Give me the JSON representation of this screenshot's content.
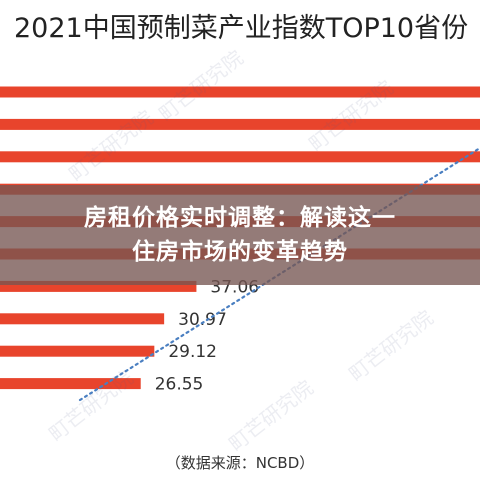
{
  "chart_data": {
    "type": "bar",
    "orientation": "horizontal",
    "title": "2021中国预制菜产业指数TOP10省份",
    "categories": [
      "",
      "",
      "",
      "",
      "",
      "",
      "",
      "",
      "",
      ""
    ],
    "values": [
      null,
      null,
      null,
      null,
      null,
      null,
      37.06,
      30.97,
      29.12,
      26.55
    ],
    "value_labels": [
      "",
      "",
      "",
      "",
      "",
      "",
      "37.06",
      "30.97",
      "29.12",
      "26.55"
    ],
    "bar_color": "#e8442c",
    "trend_line": {
      "style": "dotted",
      "color": "#4a7fc1"
    },
    "grid": false,
    "source": "（数据来源：NCBD）"
  },
  "watermark": "町芒研究院",
  "banner": {
    "line1": "房租价格实时调整：解读这一",
    "line2": "住房市场的变革趋势",
    "background": "#765652"
  }
}
